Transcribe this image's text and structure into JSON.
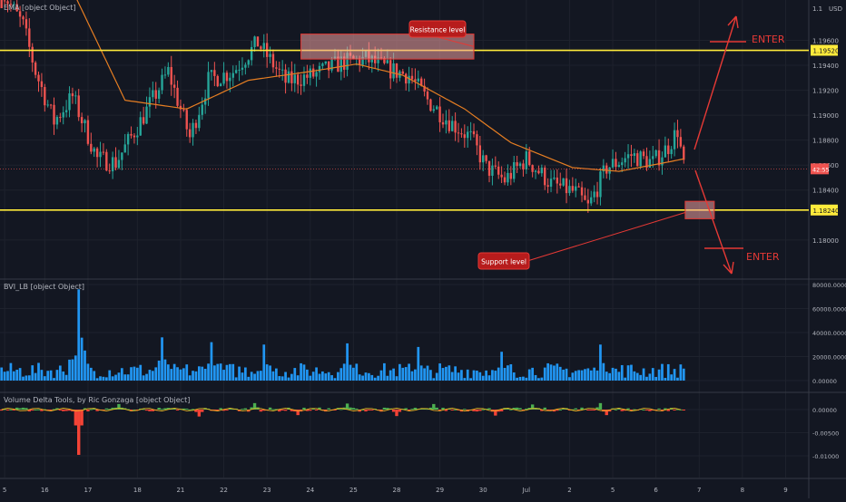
{
  "chart_data": {
    "type": "candlestick",
    "symbol_pair_note": "",
    "panes": {
      "price": {
        "label": "EMA [object Object]",
        "currency": "USD",
        "y_ticks": [
          1.196,
          1.194,
          1.192,
          1.19,
          1.188,
          1.186,
          1.184,
          1.18
        ],
        "y_tick_labels": [
          "1.19600",
          "1.19400",
          "1.19200",
          "1.19000",
          "1.18800",
          "1.18600",
          "1.18400",
          "1.18000"
        ],
        "top_cut_label": "1.1",
        "last_price_label": "42:55",
        "last_price": 1.1857,
        "resistance_level": 1.1952,
        "resistance_label": "1.19520",
        "support_level": 1.1824,
        "support_label": "1.18240",
        "annotations": {
          "resistance": "Resistance level",
          "support": "Support level",
          "enter_upper": "ENTER",
          "enter_lower": "ENTER"
        },
        "anchors": [
          [
            0,
            1.2
          ],
          [
            7,
            1.1972
          ],
          [
            11,
            1.1935
          ],
          [
            17,
            1.1895
          ],
          [
            23,
            1.1915
          ],
          [
            31,
            1.1865
          ],
          [
            37,
            1.1862
          ],
          [
            45,
            1.1895
          ],
          [
            54,
            1.1935
          ],
          [
            61,
            1.1882
          ],
          [
            67,
            1.1928
          ],
          [
            75,
            1.1935
          ],
          [
            83,
            1.1958
          ],
          [
            92,
            1.1927
          ],
          [
            101,
            1.1932
          ],
          [
            110,
            1.1942
          ],
          [
            118,
            1.1945
          ],
          [
            125,
            1.1937
          ],
          [
            132,
            1.1932
          ],
          [
            138,
            1.1912
          ],
          [
            145,
            1.1895
          ],
          [
            152,
            1.1882
          ],
          [
            157,
            1.1858
          ],
          [
            163,
            1.1848
          ],
          [
            170,
            1.1865
          ],
          [
            178,
            1.1845
          ],
          [
            186,
            1.1838
          ],
          [
            190,
            1.1826
          ],
          [
            196,
            1.1858
          ],
          [
            204,
            1.1868
          ],
          [
            211,
            1.1862
          ],
          [
            216,
            1.1875
          ],
          [
            219,
            1.1888
          ],
          [
            221,
            1.1858
          ]
        ],
        "ema_anchors": [
          [
            23,
            1.2
          ],
          [
            40,
            1.1912
          ],
          [
            60,
            1.1905
          ],
          [
            80,
            1.1928
          ],
          [
            100,
            1.1935
          ],
          [
            115,
            1.1941
          ],
          [
            130,
            1.1932
          ],
          [
            150,
            1.1905
          ],
          [
            165,
            1.1878
          ],
          [
            185,
            1.1858
          ],
          [
            200,
            1.1855
          ],
          [
            215,
            1.1862
          ],
          [
            221,
            1.1865
          ]
        ]
      },
      "volume": {
        "label": "BVI_LB [object Object]",
        "y_ticks": [
          80000,
          60000,
          40000,
          20000,
          0
        ],
        "y_tick_labels": [
          "80000.00000",
          "60000.00000",
          "40000.00000",
          "20000.00000",
          "0.00000"
        ],
        "spikes": [
          [
            25,
            76000
          ],
          [
            52,
            36000
          ],
          [
            68,
            32000
          ],
          [
            85,
            30000
          ],
          [
            112,
            31000
          ],
          [
            135,
            28000
          ],
          [
            162,
            24000
          ],
          [
            194,
            30000
          ]
        ],
        "base_level": 8000
      },
      "delta": {
        "label": "Volume Delta Tools, by Ric Gonzaga [object Object]",
        "y_ticks": [
          0,
          -0.005,
          -0.01
        ],
        "y_tick_labels": [
          "0.00000",
          "-0.00500",
          "-0.01000"
        ],
        "spikes": [
          [
            25,
            -0.0098
          ],
          [
            38,
            0.0012
          ],
          [
            64,
            -0.0015
          ],
          [
            82,
            0.0014
          ],
          [
            96,
            -0.0012
          ],
          [
            112,
            0.0013
          ],
          [
            128,
            -0.0014
          ],
          [
            140,
            0.0012
          ],
          [
            160,
            -0.0013
          ],
          [
            172,
            0.0011
          ],
          [
            194,
            0.0014
          ],
          [
            196,
            -0.0012
          ]
        ]
      }
    },
    "x_tick_labels": [
      {
        "i": 1,
        "label": "5"
      },
      {
        "i": 14,
        "label": "16"
      },
      {
        "i": 28,
        "label": "17"
      },
      {
        "i": 44,
        "label": "18"
      },
      {
        "i": 58,
        "label": "21"
      },
      {
        "i": 72,
        "label": "22"
      },
      {
        "i": 86,
        "label": "23"
      },
      {
        "i": 100,
        "label": "24"
      },
      {
        "i": 114,
        "label": "25"
      },
      {
        "i": 128,
        "label": "28"
      },
      {
        "i": 142,
        "label": "29"
      },
      {
        "i": 156,
        "label": "30"
      },
      {
        "i": 170,
        "label": "Jul"
      },
      {
        "i": 184,
        "label": "2"
      },
      {
        "i": 198,
        "label": "5"
      },
      {
        "i": 212,
        "label": "6"
      },
      {
        "i": 226,
        "label": "7"
      },
      {
        "i": 240,
        "label": "8"
      },
      {
        "i": 254,
        "label": "9"
      }
    ],
    "candle_count": 222,
    "bar_slots": 262,
    "colors": {
      "background": "#131722",
      "grid": "#1e222d",
      "up": "#26a69a",
      "down": "#ef5350",
      "ema": "#e67e22",
      "level": "#ffeb3b",
      "volume": "#2196f3",
      "delta_up": "#4caf50",
      "delta_down": "#f44336",
      "annotation_fill": "#f0a0a0",
      "annotation_border": "#e53935",
      "label_box": "#b71c1c",
      "enter": "#e53935"
    }
  }
}
